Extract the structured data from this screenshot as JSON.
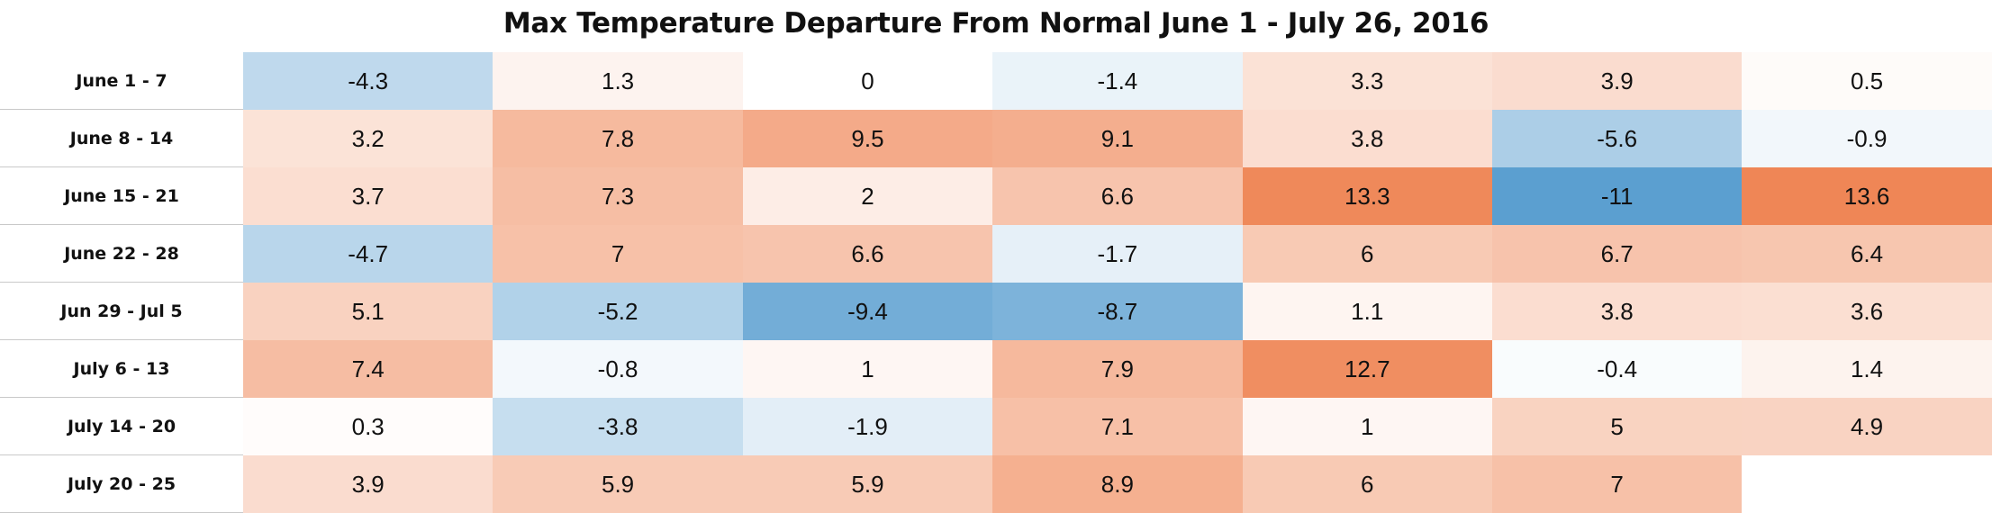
{
  "chart_data": {
    "type": "heatmap",
    "title": "Max Temperature Departure From Normal June 1 - July 26, 2016",
    "rows": [
      "June 1 - 7",
      "June 8 - 14",
      "June 15 - 21",
      "June 22 - 28",
      "Jun 29 - Jul 5",
      "July 6 - 13",
      "July 14 - 20",
      "July 20 - 25"
    ],
    "values": [
      [
        -4.3,
        1.3,
        0,
        -1.4,
        3.3,
        3.9,
        0.5
      ],
      [
        3.2,
        7.8,
        9.5,
        9.1,
        3.8,
        -5.6,
        -0.9
      ],
      [
        3.7,
        7.3,
        2,
        6.6,
        13.3,
        -11,
        13.6
      ],
      [
        -4.7,
        7,
        6.6,
        -1.7,
        6,
        6.7,
        6.4
      ],
      [
        5.1,
        -5.2,
        -9.4,
        -8.7,
        1.1,
        3.8,
        3.6
      ],
      [
        7.4,
        -0.8,
        1,
        7.9,
        12.7,
        -0.4,
        1.4
      ],
      [
        0.3,
        -3.8,
        -1.9,
        7.1,
        1,
        5,
        4.9
      ],
      [
        3.9,
        5.9,
        5.9,
        8.9,
        6,
        7,
        null
      ]
    ],
    "color_scale": {
      "negative": "#5b9fd0",
      "neutral": "#ffffff",
      "positive": "#ef8656",
      "min": -11,
      "max": 13.6
    }
  }
}
